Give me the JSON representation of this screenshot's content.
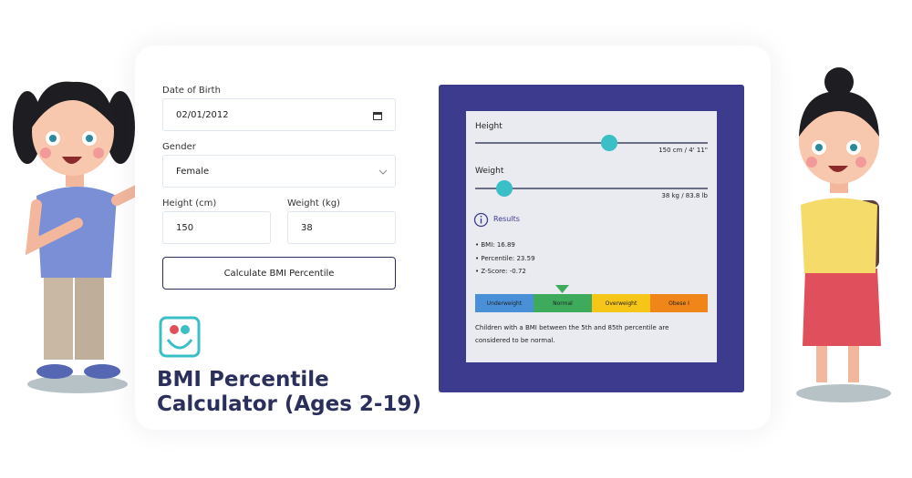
{
  "form": {
    "dob_label": "Date of Birth",
    "dob_value": "02/01/2012",
    "gender_label": "Gender",
    "gender_value": "Female",
    "height_label": "Height (cm)",
    "height_value": "150",
    "weight_label": "Weight (kg)",
    "weight_value": "38",
    "button": "Calculate BMI Percentile"
  },
  "title": [
    "BMI Percentile",
    "Calculator (Ages 2-19)"
  ],
  "panel": {
    "height_label": "Height",
    "height_readout": "150 cm / 4' 11\"",
    "weight_label": "Weight",
    "weight_readout": "38 kg / 83.8 lb",
    "results_title": "Results",
    "results": [
      "BMI: 16.89",
      "Percentile: 23.59",
      "Z-Score: -0.72"
    ],
    "scale": [
      "Underweight",
      "Normal",
      "Overweight",
      "Obese I"
    ],
    "note": "Children with a BMI between the 5th and 85th percentile are considered to be normal."
  }
}
